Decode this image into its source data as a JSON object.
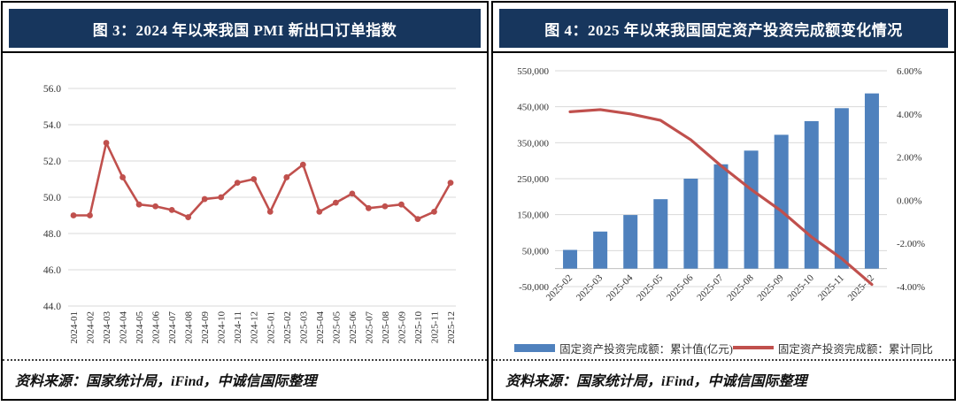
{
  "panels": [
    {
      "title": "图 3：2024 年以来我国 PMI 新出口订单指数",
      "source_note": "资料来源：国家统计局，iFind，中诚信国际整理"
    },
    {
      "title": "图 4：2025 年以来我国固定资产投资完成额变化情况",
      "source_note": "资料来源：国家统计局，iFind，中诚信国际整理"
    }
  ],
  "colors": {
    "title_bar_bg": "#17365d",
    "title_text": "#ffffff",
    "line_red": "#c0504d",
    "bar_blue": "#4f81bd",
    "gridline": "#d9d9d9",
    "axis_text": "#333333"
  },
  "chart_data": [
    {
      "type": "line",
      "title": "2024 年以来我国 PMI 新出口订单指数",
      "x": [
        "2024-01",
        "2024-02",
        "2024-03",
        "2024-04",
        "2024-05",
        "2024-06",
        "2024-07",
        "2024-08",
        "2024-09",
        "2024-10",
        "2024-11",
        "2024-12",
        "2025-01",
        "2025-02",
        "2025-03",
        "2025-04",
        "2025-05",
        "2025-06",
        "2025-07",
        "2025-08",
        "2025-09",
        "2025-10",
        "2025-11",
        "2025-12"
      ],
      "series": [
        {
          "name": "PMI 新出口订单指数",
          "color": "#c0504d",
          "values": [
            49.0,
            49.0,
            53.0,
            51.1,
            49.6,
            49.5,
            49.3,
            48.9,
            49.9,
            50.0,
            50.8,
            51.0,
            49.2,
            51.1,
            51.8,
            49.2,
            49.7,
            50.2,
            49.4,
            49.5,
            49.6,
            48.8,
            49.2,
            50.8
          ]
        }
      ],
      "ylim": [
        44.0,
        56.0
      ],
      "ytick_step": 2.0,
      "ytick_labels": [
        "56.0",
        "54.0",
        "52.0",
        "50.0",
        "48.0",
        "46.0",
        "44.0"
      ],
      "grid": true,
      "legend": "none",
      "x_label_rotation": -90
    },
    {
      "type": "combo-bar-line",
      "title": "2025 年以来我国固定资产投资完成额变化情况",
      "x": [
        "2025-02",
        "2025-03",
        "2025-04",
        "2025-05",
        "2025-06",
        "2025-07",
        "2025-08",
        "2025-09",
        "2025-10",
        "2025-11",
        "2025-12"
      ],
      "bar_series": {
        "name": "固定资产投资完成额：累计值(亿元)",
        "color": "#4f81bd",
        "axis": "left",
        "values": [
          52000,
          103000,
          149000,
          193000,
          250000,
          290000,
          328000,
          372000,
          410000,
          446000,
          487000
        ]
      },
      "line_series": {
        "name": "固定资产投资完成额：累计同比",
        "color": "#c0504d",
        "axis": "right",
        "values": [
          4.1,
          4.2,
          4.0,
          3.7,
          2.8,
          1.6,
          0.5,
          -0.5,
          -1.7,
          -2.7,
          -3.9
        ]
      },
      "left_ylim": [
        -50000,
        550000
      ],
      "left_ytick_step": 100000,
      "left_ytick_labels": [
        "550,000",
        "450,000",
        "350,000",
        "250,000",
        "150,000",
        "50,000",
        "-50,000"
      ],
      "right_ylim": [
        -4.0,
        6.0
      ],
      "right_ytick_step": 2.0,
      "right_ytick_labels": [
        "6.00%",
        "4.00%",
        "2.00%",
        "0.00%",
        "-2.00%",
        "-4.00%"
      ],
      "grid": true,
      "legend": "bottom",
      "x_label_rotation": -45
    }
  ]
}
